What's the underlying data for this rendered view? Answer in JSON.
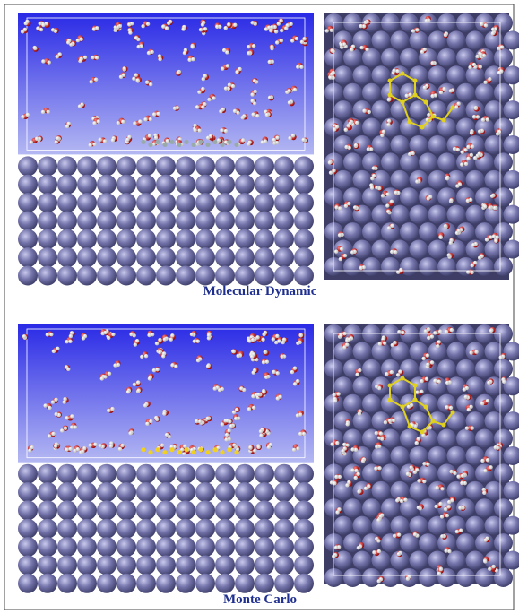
{
  "figure": {
    "panels": [
      {
        "caption": "Molecular Dynamic"
      },
      {
        "caption": "Monte Carlo"
      }
    ]
  }
}
